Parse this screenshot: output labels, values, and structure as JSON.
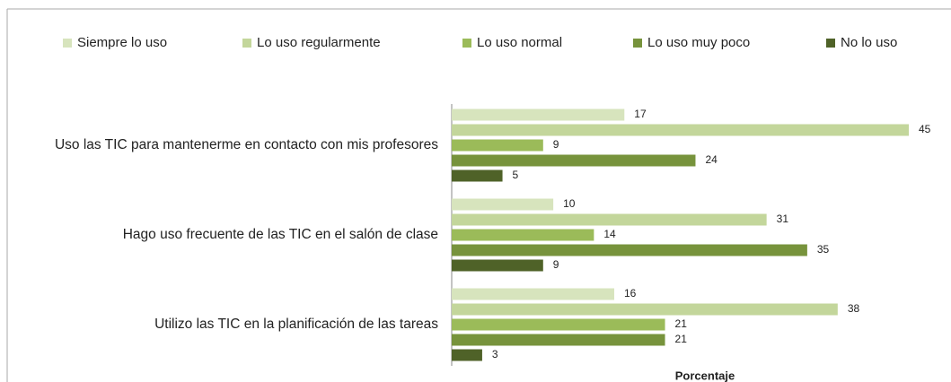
{
  "chart_data": {
    "type": "bar",
    "orientation": "horizontal",
    "x_label": "Porcentaje",
    "categories": [
      "Uso las TIC para mantenerme en contacto con mis profesores",
      "Hago uso frecuente de las TIC en el salón de clase",
      "Utilizo las TIC en la planificación de las tareas"
    ],
    "series": [
      {
        "name": "Siempre lo uso",
        "color": "#d7e4bd",
        "values": [
          17,
          10,
          16
        ]
      },
      {
        "name": "Lo uso regularmente",
        "color": "#c3d69b",
        "values": [
          45,
          31,
          38
        ]
      },
      {
        "name": "Lo uso normal",
        "color": "#9bbb59",
        "values": [
          9,
          14,
          21
        ]
      },
      {
        "name": "Lo uso muy poco",
        "color": "#77933c",
        "values": [
          24,
          35,
          21
        ]
      },
      {
        "name": "No lo uso",
        "color": "#4f6228",
        "values": [
          5,
          9,
          3
        ]
      }
    ],
    "xlim": [
      0,
      45
    ],
    "legend": "top"
  }
}
